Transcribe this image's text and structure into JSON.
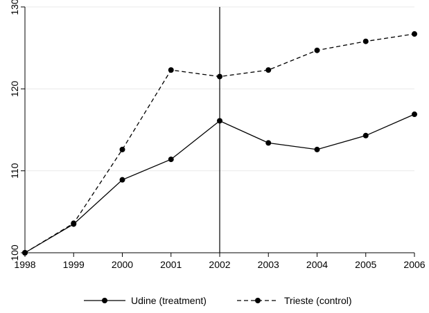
{
  "chart_data": {
    "type": "line",
    "title": "",
    "xlabel": "",
    "ylabel": "",
    "x": [
      1998,
      1999,
      2000,
      2001,
      2002,
      2003,
      2004,
      2005,
      2006
    ],
    "xlim": [
      1998,
      2006
    ],
    "ylim": [
      100,
      130
    ],
    "xticks": [
      "1998",
      "1999",
      "2000",
      "2001",
      "2002",
      "2003",
      "2004",
      "2005",
      "2006"
    ],
    "yticks": [
      "100",
      "110",
      "120",
      "130"
    ],
    "grid": "horizontal",
    "reference_line": {
      "x": 2002
    },
    "legend_position": "bottom",
    "series": [
      {
        "name": "Udine (treatment)",
        "style": "solid",
        "color": "#000000",
        "values": [
          100,
          103.5,
          108.9,
          111.4,
          116.1,
          113.4,
          112.6,
          114.3,
          116.9
        ]
      },
      {
        "name": "Trieste (control)",
        "style": "dashed",
        "color": "#000000",
        "values": [
          100,
          103.6,
          112.6,
          122.3,
          121.5,
          122.3,
          124.7,
          125.8,
          126.7
        ]
      }
    ]
  }
}
